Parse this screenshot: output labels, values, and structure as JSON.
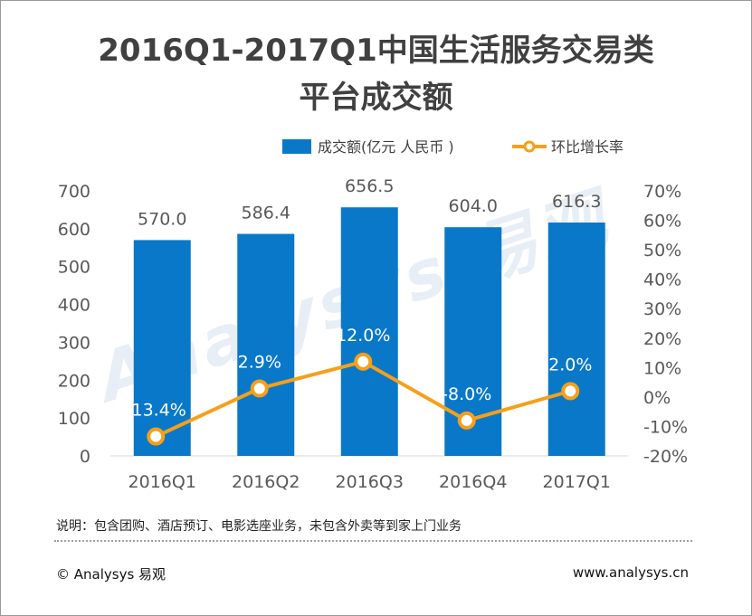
{
  "page": {
    "footnote": "说明：包含团购、酒店预订、电影选座业务，未包含外卖等到家上门业务",
    "copyright": "© Analysys 易观",
    "website": "www.analysys.cn",
    "watermark": "Analysys 易观"
  },
  "chart_data": {
    "type": "bar",
    "title": "2016Q1-2017Q1中国生活服务交易类平台成交额",
    "title_lines": [
      "2016Q1-2017Q1中国生活服务交易类",
      "平台成交额"
    ],
    "categories": [
      "2016Q1",
      "2016Q2",
      "2016Q3",
      "2016Q4",
      "2017Q1"
    ],
    "series": [
      {
        "name": "成交额(亿元 人民币 )",
        "type": "bar",
        "axis": "left",
        "color": "#0a78c8",
        "values": [
          570.0,
          586.4,
          656.5,
          604.0,
          616.3
        ],
        "labels": [
          "570.0",
          "586.4",
          "656.5",
          "604.0",
          "616.3"
        ]
      },
      {
        "name": "环比增长率",
        "type": "line",
        "axis": "right",
        "color": "#f5a01a",
        "values": [
          -13.4,
          2.9,
          12.0,
          -8.0,
          2.0
        ],
        "labels": [
          "-13.4%",
          "2.9%",
          "12.0%",
          "-8.0%",
          "2.0%"
        ]
      }
    ],
    "y_left": {
      "range": [
        0,
        700
      ],
      "ticks": [
        0,
        100,
        200,
        300,
        400,
        500,
        600,
        700
      ]
    },
    "y_right": {
      "range": [
        -20,
        70
      ],
      "ticks": [
        "-20%",
        "-10%",
        "0%",
        "10%",
        "20%",
        "30%",
        "40%",
        "50%",
        "60%",
        "70%"
      ]
    },
    "grid": false,
    "legend": "top"
  }
}
